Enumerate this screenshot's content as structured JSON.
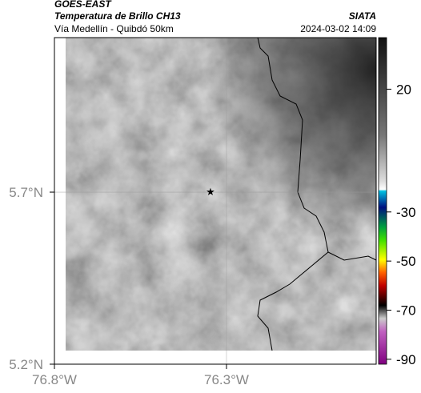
{
  "header": {
    "title": "GOES-EAST",
    "subtitle": "Temperatura de Brillo CH13",
    "region": "Vía Medellín - Quibdó 50km",
    "source": "SIATA",
    "timestamp": "2024-03-02 14:09"
  },
  "map": {
    "lonlim": [
      -76.8,
      -75.865
    ],
    "latlim": [
      5.2,
      6.149
    ],
    "lat_ticks": [
      {
        "value": 5.7,
        "label": "5.7°N"
      },
      {
        "value": 5.2,
        "label": "5.2°N"
      }
    ],
    "lon_ticks": [
      {
        "value": -76.8,
        "label": "76.8°W"
      },
      {
        "value": -76.3,
        "label": "76.3°W"
      }
    ]
  },
  "colorbar": {
    "range": [
      41,
      -92
    ],
    "ticks": [
      20,
      -30,
      -50,
      -70,
      -90
    ]
  }
}
